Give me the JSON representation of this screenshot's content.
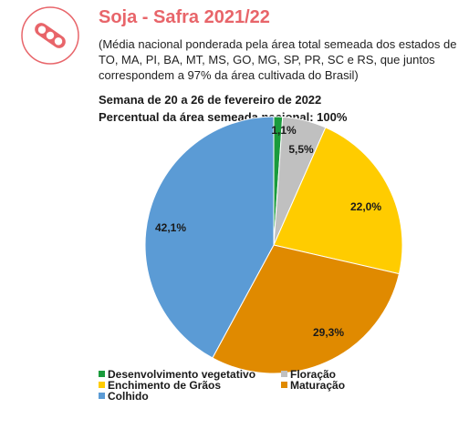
{
  "header": {
    "title": "Soja - Safra 2021/22",
    "description": "(Média nacional ponderada pela área total semeada dos estados de TO, MA, PI, BA, MT, MS, GO, MG, SP, PR, SC e RS, que juntos correspondem a 97% da área cultivada do Brasil)",
    "week": "Semana de 20 a 26 de fevereiro de 2022",
    "percent_area": "Percentual da área semeada nacional: 100%"
  },
  "logo": {
    "icon": "soybean-pod-icon",
    "color": "#e8656a"
  },
  "chart_data": {
    "type": "pie",
    "title": "",
    "legend_position": "bottom",
    "slices": [
      {
        "name": "Desenvolvimento vegetativo",
        "value": 1.1,
        "label": "1,1%",
        "color": "#1a9b3c"
      },
      {
        "name": "Floração",
        "value": 5.5,
        "label": "5,5%",
        "color": "#c0c0c0"
      },
      {
        "name": "Enchimento de Grãos",
        "value": 22.0,
        "label": "22,0%",
        "color": "#ffcc00"
      },
      {
        "name": "Maturação",
        "value": 29.3,
        "label": "29,3%",
        "color": "#e08a00"
      },
      {
        "name": "Colhido",
        "value": 42.1,
        "label": "42,1%",
        "color": "#5b9bd5"
      }
    ]
  }
}
